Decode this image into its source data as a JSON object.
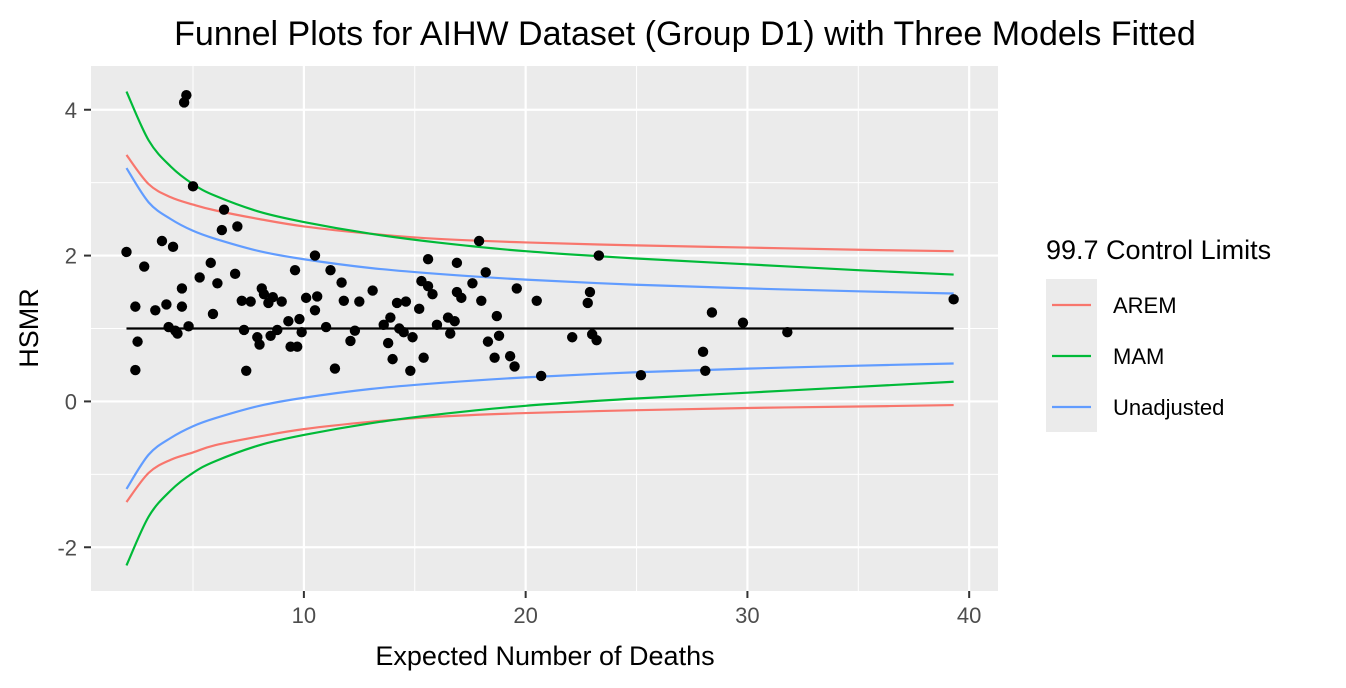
{
  "chart_data": {
    "type": "scatter",
    "title": "Funnel Plots for AIHW Dataset (Group D1) with Three Models Fitted",
    "xlabel": "Expected Number of Deaths",
    "ylabel": "HSMR",
    "xlim": [
      0.4,
      41.3
    ],
    "ylim": [
      -2.6,
      4.6
    ],
    "x_ticks": [
      10,
      20,
      30,
      40
    ],
    "y_ticks": [
      -2,
      0,
      2,
      4
    ],
    "grid": true,
    "background": "#ebebeb",
    "reference_line": {
      "y": 1,
      "color": "#000000"
    },
    "legend": {
      "title": "99.7 Control Limits",
      "position": "right",
      "entries": [
        {
          "label": "AREM",
          "color": "#F8766D"
        },
        {
          "label": "MAM",
          "color": "#00BA38"
        },
        {
          "label": "Unadjusted",
          "color": "#619CFF"
        }
      ]
    },
    "series": [
      {
        "name": "AREM",
        "color": "#F8766D",
        "x": [
          2,
          3,
          4,
          5,
          6,
          8,
          10,
          13,
          16,
          20,
          25,
          30,
          35,
          39.3
        ],
        "upper": [
          3.38,
          2.98,
          2.8,
          2.7,
          2.62,
          2.5,
          2.4,
          2.3,
          2.23,
          2.18,
          2.14,
          2.11,
          2.08,
          2.06
        ],
        "lower": [
          -1.38,
          -0.98,
          -0.8,
          -0.7,
          -0.6,
          -0.48,
          -0.38,
          -0.28,
          -0.21,
          -0.16,
          -0.12,
          -0.09,
          -0.07,
          -0.05
        ]
      },
      {
        "name": "MAM",
        "color": "#00BA38",
        "x": [
          2,
          3,
          4,
          5,
          6,
          8,
          10,
          13,
          16,
          20,
          25,
          30,
          35,
          39.3
        ],
        "upper": [
          4.25,
          3.58,
          3.22,
          2.98,
          2.82,
          2.6,
          2.46,
          2.3,
          2.18,
          2.06,
          1.96,
          1.88,
          1.8,
          1.74
        ],
        "lower": [
          -2.25,
          -1.58,
          -1.22,
          -0.98,
          -0.82,
          -0.6,
          -0.46,
          -0.3,
          -0.18,
          -0.06,
          0.04,
          0.12,
          0.2,
          0.27
        ]
      },
      {
        "name": "Unadjusted",
        "color": "#619CFF",
        "x": [
          2,
          3,
          4,
          5,
          6,
          8,
          10,
          13,
          16,
          20,
          25,
          30,
          35,
          39.3
        ],
        "upper": [
          3.2,
          2.73,
          2.5,
          2.34,
          2.23,
          2.06,
          1.95,
          1.83,
          1.75,
          1.67,
          1.6,
          1.55,
          1.51,
          1.48
        ],
        "lower": [
          -1.2,
          -0.73,
          -0.5,
          -0.34,
          -0.23,
          -0.06,
          0.05,
          0.17,
          0.25,
          0.33,
          0.4,
          0.45,
          0.49,
          0.52
        ]
      }
    ],
    "points": [
      [
        2.0,
        2.05
      ],
      [
        2.4,
        1.3
      ],
      [
        2.4,
        0.43
      ],
      [
        2.5,
        0.82
      ],
      [
        2.8,
        1.85
      ],
      [
        3.3,
        1.25
      ],
      [
        3.6,
        2.2
      ],
      [
        3.8,
        1.33
      ],
      [
        3.9,
        1.02
      ],
      [
        4.1,
        2.12
      ],
      [
        4.2,
        0.97
      ],
      [
        4.3,
        0.93
      ],
      [
        4.5,
        1.55
      ],
      [
        4.5,
        1.3
      ],
      [
        4.6,
        4.1
      ],
      [
        4.7,
        4.2
      ],
      [
        4.8,
        1.03
      ],
      [
        5.0,
        2.95
      ],
      [
        5.3,
        1.7
      ],
      [
        5.8,
        1.9
      ],
      [
        5.9,
        1.2
      ],
      [
        6.1,
        1.62
      ],
      [
        6.3,
        2.35
      ],
      [
        6.4,
        2.63
      ],
      [
        6.9,
        1.75
      ],
      [
        7.0,
        2.4
      ],
      [
        7.2,
        1.38
      ],
      [
        7.3,
        0.98
      ],
      [
        7.4,
        0.42
      ],
      [
        7.6,
        1.37
      ],
      [
        7.9,
        0.88
      ],
      [
        8.0,
        0.78
      ],
      [
        8.1,
        1.55
      ],
      [
        8.2,
        1.47
      ],
      [
        8.4,
        1.35
      ],
      [
        8.5,
        0.9
      ],
      [
        8.6,
        1.43
      ],
      [
        8.8,
        0.98
      ],
      [
        9.0,
        1.37
      ],
      [
        9.3,
        1.1
      ],
      [
        9.4,
        0.75
      ],
      [
        9.6,
        1.8
      ],
      [
        9.7,
        0.75
      ],
      [
        9.8,
        1.13
      ],
      [
        9.9,
        0.95
      ],
      [
        10.1,
        1.42
      ],
      [
        10.5,
        1.25
      ],
      [
        10.5,
        2.0
      ],
      [
        10.6,
        1.44
      ],
      [
        11.0,
        1.02
      ],
      [
        11.2,
        1.8
      ],
      [
        11.4,
        0.45
      ],
      [
        11.7,
        1.63
      ],
      [
        11.8,
        1.38
      ],
      [
        12.1,
        0.83
      ],
      [
        12.3,
        0.97
      ],
      [
        12.5,
        1.37
      ],
      [
        13.1,
        1.52
      ],
      [
        13.6,
        1.05
      ],
      [
        13.8,
        0.8
      ],
      [
        13.9,
        1.15
      ],
      [
        14.0,
        0.58
      ],
      [
        14.2,
        1.35
      ],
      [
        14.3,
        1.0
      ],
      [
        14.5,
        0.95
      ],
      [
        14.6,
        1.37
      ],
      [
        14.8,
        0.42
      ],
      [
        14.9,
        0.88
      ],
      [
        15.2,
        1.27
      ],
      [
        15.3,
        1.65
      ],
      [
        15.4,
        0.6
      ],
      [
        15.6,
        1.95
      ],
      [
        15.6,
        1.58
      ],
      [
        15.8,
        1.47
      ],
      [
        16.0,
        1.05
      ],
      [
        16.5,
        1.15
      ],
      [
        16.6,
        0.93
      ],
      [
        16.8,
        1.1
      ],
      [
        16.9,
        1.5
      ],
      [
        16.9,
        1.9
      ],
      [
        17.1,
        1.42
      ],
      [
        17.6,
        1.62
      ],
      [
        17.9,
        2.2
      ],
      [
        18.0,
        1.38
      ],
      [
        18.2,
        1.77
      ],
      [
        18.3,
        0.82
      ],
      [
        18.6,
        0.6
      ],
      [
        18.7,
        1.17
      ],
      [
        18.8,
        0.9
      ],
      [
        19.3,
        0.62
      ],
      [
        19.5,
        0.48
      ],
      [
        19.6,
        1.55
      ],
      [
        20.5,
        1.38
      ],
      [
        20.7,
        0.35
      ],
      [
        22.1,
        0.88
      ],
      [
        22.8,
        1.35
      ],
      [
        22.9,
        1.5
      ],
      [
        23.0,
        0.92
      ],
      [
        23.2,
        0.84
      ],
      [
        23.3,
        2.0
      ],
      [
        25.2,
        0.36
      ],
      [
        28.0,
        0.68
      ],
      [
        28.1,
        0.42
      ],
      [
        28.4,
        1.22
      ],
      [
        29.8,
        1.08
      ],
      [
        31.8,
        0.95
      ],
      [
        39.3,
        1.4
      ]
    ]
  }
}
